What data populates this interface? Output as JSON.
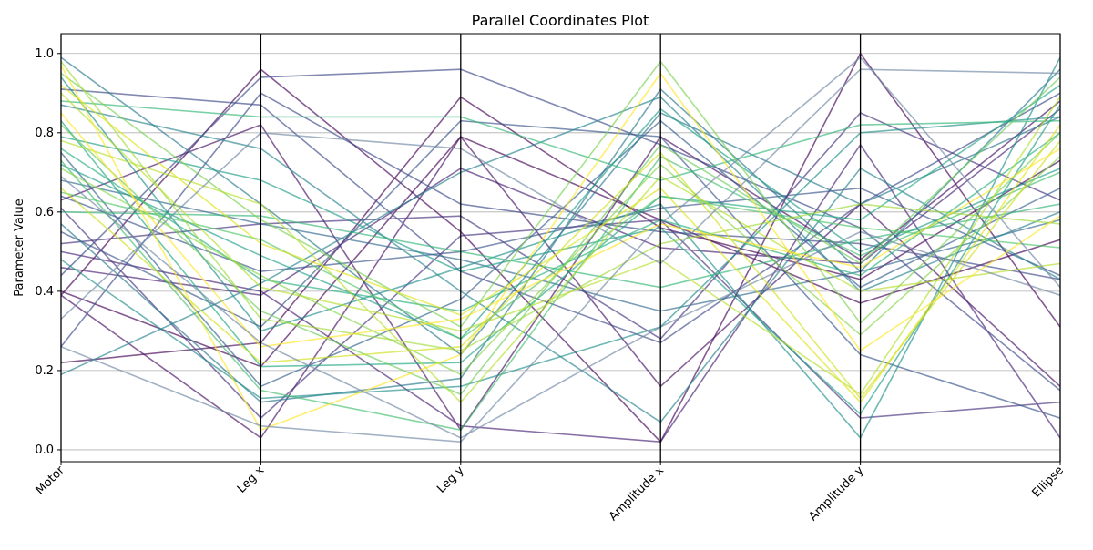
{
  "chart_data": {
    "type": "parallel_coordinates",
    "title": "Parallel Coordinates Plot",
    "ylabel": "Parameter Value",
    "xlabel": "",
    "axes": [
      "Motor",
      "Leg x",
      "Leg y",
      "Amplitude x",
      "Amplitude y",
      "Ellipse"
    ],
    "ylim": [
      -0.03,
      1.05
    ],
    "yticks": [
      0.0,
      0.2,
      0.4,
      0.6,
      0.8,
      1.0
    ],
    "ytick_labels": [
      "0.0",
      "0.2",
      "0.4",
      "0.6",
      "0.8",
      "1.0"
    ],
    "grid": true,
    "colormap": "viridis",
    "line_alpha": 0.65,
    "series": [
      {
        "color": "#440154",
        "values": [
          0.39,
          0.96,
          0.55,
          0.02,
          1.0,
          0.31
        ]
      },
      {
        "color": "#440154",
        "values": [
          0.4,
          0.21,
          0.79,
          0.58,
          0.37,
          0.53
        ]
      },
      {
        "color": "#440154",
        "values": [
          0.22,
          0.27,
          0.89,
          0.56,
          0.43,
          0.73
        ]
      },
      {
        "color": "#471063",
        "values": [
          0.63,
          0.82,
          0.05,
          0.79,
          0.48,
          0.88
        ]
      },
      {
        "color": "#471063",
        "values": [
          0.39,
          0.03,
          0.79,
          0.16,
          0.62,
          0.16
        ]
      },
      {
        "color": "#482173",
        "values": [
          0.46,
          0.39,
          0.71,
          0.51,
          0.47,
          0.86
        ]
      },
      {
        "color": "#482173",
        "values": [
          0.5,
          0.4,
          0.06,
          0.02,
          0.77,
          0.03
        ]
      },
      {
        "color": "#46327e",
        "values": [
          0.61,
          0.08,
          0.54,
          0.58,
          0.08,
          0.12
        ]
      },
      {
        "color": "#46327e",
        "values": [
          0.52,
          0.57,
          0.59,
          0.28,
          0.85,
          0.63
        ]
      },
      {
        "color": "#3e4989",
        "values": [
          0.91,
          0.87,
          0.45,
          0.27,
          0.62,
          0.9
        ]
      },
      {
        "color": "#3e4989",
        "values": [
          0.44,
          0.94,
          0.96,
          0.77,
          0.56,
          0.15
        ]
      },
      {
        "color": "#3e4989",
        "values": [
          0.26,
          0.9,
          0.62,
          0.55,
          0.52,
          0.43
        ]
      },
      {
        "color": "#39568c",
        "values": [
          0.55,
          0.31,
          0.83,
          0.79,
          0.24,
          0.08
        ]
      },
      {
        "color": "#39568c",
        "values": [
          0.64,
          0.45,
          0.5,
          0.61,
          0.66,
          0.44
        ]
      },
      {
        "color": "#35608d",
        "values": [
          0.75,
          0.16,
          0.38,
          0.83,
          0.41,
          0.66
        ]
      },
      {
        "color": "#31688e",
        "values": [
          0.68,
          0.57,
          0.48,
          0.35,
          0.45,
          0.58
        ]
      },
      {
        "color": "#2a788e",
        "values": [
          0.99,
          0.62,
          0.24,
          0.85,
          0.62,
          0.84
        ]
      },
      {
        "color": "#2a788e",
        "values": [
          0.57,
          0.12,
          0.18,
          0.91,
          0.45,
          0.96
        ]
      },
      {
        "color": "#26828e",
        "values": [
          0.87,
          0.76,
          0.4,
          0.07,
          0.71,
          0.43
        ]
      },
      {
        "color": "#26828e",
        "values": [
          0.19,
          0.42,
          0.7,
          0.89,
          0.4,
          0.6
        ]
      },
      {
        "color": "#21918c",
        "values": [
          0.94,
          0.3,
          0.46,
          0.62,
          0.03,
          0.99
        ]
      },
      {
        "color": "#21918c",
        "values": [
          0.48,
          0.13,
          0.16,
          0.31,
          0.8,
          0.84
        ]
      },
      {
        "color": "#1f9e89",
        "values": [
          0.79,
          0.68,
          0.45,
          0.56,
          0.09,
          0.87
        ]
      },
      {
        "color": "#1f9e89",
        "values": [
          0.72,
          0.49,
          0.28,
          0.86,
          0.5,
          0.71
        ]
      },
      {
        "color": "#22a884",
        "values": [
          0.83,
          0.21,
          0.22,
          0.64,
          0.58,
          0.92
        ]
      },
      {
        "color": "#2ab07f",
        "values": [
          0.76,
          0.43,
          0.35,
          0.58,
          0.44,
          0.8
        ]
      },
      {
        "color": "#35b779",
        "values": [
          0.88,
          0.84,
          0.84,
          0.68,
          0.82,
          0.83
        ]
      },
      {
        "color": "#35b779",
        "values": [
          0.6,
          0.59,
          0.5,
          0.41,
          0.53,
          0.62
        ]
      },
      {
        "color": "#44bf70",
        "values": [
          0.73,
          0.15,
          0.05,
          0.74,
          0.49,
          0.7
        ]
      },
      {
        "color": "#52c569",
        "values": [
          0.65,
          0.53,
          0.28,
          0.64,
          0.56,
          0.51
        ]
      },
      {
        "color": "#6ccd5a",
        "values": [
          0.82,
          0.35,
          0.14,
          0.77,
          0.47,
          0.94
        ]
      },
      {
        "color": "#7ad151",
        "values": [
          0.95,
          0.58,
          0.31,
          0.98,
          0.32,
          0.8
        ]
      },
      {
        "color": "#86d549",
        "values": [
          0.71,
          0.44,
          0.19,
          0.72,
          0.29,
          0.74
        ]
      },
      {
        "color": "#a0da39",
        "values": [
          0.98,
          0.33,
          0.25,
          0.52,
          0.62,
          0.57
        ]
      },
      {
        "color": "#b5de2b",
        "values": [
          0.9,
          0.41,
          0.3,
          0.48,
          0.14,
          0.89
        ]
      },
      {
        "color": "#b5de2b",
        "values": [
          0.78,
          0.62,
          0.12,
          0.69,
          0.4,
          0.47
        ]
      },
      {
        "color": "#d0e11c",
        "values": [
          0.66,
          0.22,
          0.26,
          0.75,
          0.13,
          0.78
        ]
      },
      {
        "color": "#dde318",
        "values": [
          0.92,
          0.52,
          0.34,
          0.66,
          0.12,
          0.82
        ]
      },
      {
        "color": "#fde725",
        "values": [
          0.97,
          0.05,
          0.24,
          0.95,
          0.25,
          0.59
        ]
      },
      {
        "color": "#fde725",
        "values": [
          0.85,
          0.26,
          0.33,
          0.57,
          0.46,
          0.76
        ]
      },
      {
        "color": "#7089a4",
        "values": [
          0.33,
          0.8,
          0.76,
          0.47,
          0.96,
          0.95
        ]
      },
      {
        "color": "#7089a4",
        "values": [
          0.26,
          0.06,
          0.02,
          0.57,
          0.99,
          0.41
        ]
      },
      {
        "color": "#7089a4",
        "values": [
          0.69,
          0.27,
          0.03,
          0.31,
          0.55,
          0.39
        ]
      }
    ]
  }
}
